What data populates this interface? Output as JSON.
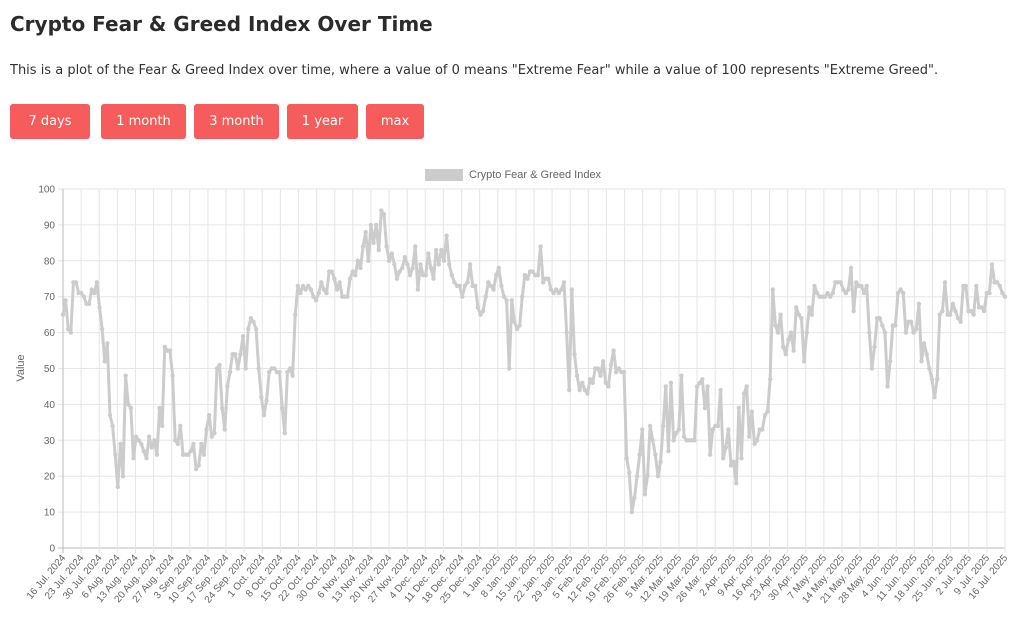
{
  "page": {
    "title": "Crypto Fear & Greed Index Over Time",
    "description": "This is a plot of the Fear & Greed Index over time, where a value of 0 means \"Extreme Fear\" while a value of 100 represents \"Extreme Greed\"."
  },
  "range_buttons": [
    "7 days",
    "1 month",
    "3 month",
    "1 year",
    "max"
  ],
  "colors": {
    "button": "#f75c5c",
    "series": "#cccccc",
    "grid": "#e6e6e6"
  },
  "chart_data": {
    "type": "line",
    "legend": "Crypto Fear & Greed Index",
    "legend_position": "top-center",
    "ylabel": "Value",
    "ylim": [
      0,
      100
    ],
    "y_ticks": [
      0,
      10,
      20,
      30,
      40,
      50,
      60,
      70,
      80,
      90,
      100
    ],
    "grid": true,
    "x_tick_labels": [
      "16 Jul. 2024",
      "23 Jul. 2024",
      "30 Jul. 2024",
      "6 Aug. 2024",
      "13 Aug. 2024",
      "20 Aug. 2024",
      "27 Aug. 2024",
      "3 Sep. 2024",
      "10 Sep. 2024",
      "17 Sep. 2024",
      "24 Sep. 2024",
      "1 Oct. 2024",
      "8 Oct. 2024",
      "15 Oct. 2024",
      "22 Oct. 2024",
      "30 Oct. 2024",
      "6 Nov. 2024",
      "13 Nov. 2024",
      "20 Nov. 2024",
      "27 Nov. 2024",
      "4 Dec. 2024",
      "11 Dec. 2024",
      "18 Dec. 2024",
      "25 Dec. 2024",
      "1 Jan. 2025",
      "8 Jan. 2025",
      "15 Jan. 2025",
      "22 Jan. 2025",
      "29 Jan. 2025",
      "5 Feb. 2025",
      "12 Feb. 2025",
      "19 Feb. 2025",
      "26 Feb. 2025",
      "5 Mar. 2025",
      "12 Mar. 2025",
      "19 Mar. 2025",
      "26 Mar. 2025",
      "2 Apr. 2025",
      "9 Apr. 2025",
      "16 Apr. 2025",
      "23 Apr. 2025",
      "30 Apr. 2025",
      "7 May. 2025",
      "14 May. 2025",
      "21 May. 2025",
      "28 May. 2025",
      "4 Jun. 2025",
      "11 Jun. 2025",
      "18 Jun. 2025",
      "25 Jun. 2025",
      "2 Jul. 2025",
      "9 Jul. 2025",
      "16 Jul. 2025"
    ],
    "series": [
      {
        "name": "Crypto Fear & Greed Index",
        "values": [
          65,
          69,
          61,
          60,
          74,
          74,
          71,
          71,
          70,
          68,
          68,
          72,
          71,
          74,
          67,
          61,
          52,
          57,
          37,
          34,
          26,
          17,
          29,
          20,
          48,
          40,
          39,
          25,
          31,
          30,
          29,
          27,
          25,
          31,
          28,
          30,
          26,
          39,
          34,
          56,
          55,
          55,
          48,
          30,
          29,
          34,
          26,
          26,
          26,
          27,
          29,
          22,
          23,
          29,
          26,
          33,
          37,
          31,
          32,
          50,
          51,
          39,
          33,
          45,
          49,
          54,
          54,
          50,
          54,
          59,
          50,
          61,
          64,
          63,
          61,
          50,
          42,
          37,
          41,
          49,
          50,
          50,
          49,
          49,
          39,
          32,
          49,
          50,
          48,
          65,
          73,
          71,
          73,
          72,
          73,
          72,
          70,
          69,
          71,
          74,
          72,
          71,
          77,
          77,
          75,
          72,
          74,
          70,
          70,
          70,
          75,
          77,
          76,
          80,
          78,
          84,
          88,
          80,
          90,
          85,
          90,
          83,
          94,
          93,
          84,
          80,
          82,
          79,
          75,
          77,
          78,
          81,
          79,
          76,
          78,
          84,
          72,
          79,
          76,
          76,
          82,
          78,
          75,
          83,
          79,
          83,
          80,
          87,
          79,
          76,
          74,
          73,
          73,
          70,
          73,
          74,
          79,
          73,
          73,
          67,
          65,
          66,
          70,
          74,
          73,
          72,
          76,
          78,
          73,
          70,
          69,
          50,
          69,
          63,
          61,
          62,
          70,
          76,
          75,
          77,
          77,
          76,
          76,
          84,
          74,
          75,
          75,
          72,
          71,
          72,
          71,
          72,
          74,
          60,
          44,
          72,
          54,
          48,
          44,
          46,
          44,
          43,
          47,
          46,
          50,
          50,
          48,
          52,
          46,
          45,
          51,
          55,
          49,
          50,
          49,
          49,
          25,
          21,
          10,
          14,
          20,
          26,
          33,
          15,
          20,
          34,
          30,
          26,
          20,
          24,
          34,
          45,
          27,
          46,
          30,
          32,
          33,
          48,
          31,
          30,
          30,
          30,
          30,
          45,
          46,
          47,
          39,
          45,
          26,
          33,
          34,
          34,
          44,
          25,
          28,
          33,
          23,
          24,
          18,
          39,
          25,
          43,
          45,
          31,
          38,
          29,
          30,
          33,
          33,
          37,
          38,
          47,
          72,
          62,
          60,
          65,
          56,
          54,
          58,
          60,
          55,
          67,
          65,
          64,
          52,
          60,
          67,
          65,
          73,
          71,
          70,
          70,
          70,
          71,
          70,
          71,
          74,
          74,
          74,
          72,
          71,
          72,
          78,
          66,
          74,
          73,
          73,
          71,
          73,
          60,
          50,
          56,
          64,
          64,
          62,
          60,
          45,
          52,
          62,
          62,
          71,
          72,
          71,
          60,
          63,
          63,
          60,
          61,
          68,
          52,
          57,
          54,
          50,
          47,
          42,
          47,
          65,
          66,
          74,
          65,
          65,
          68,
          66,
          64,
          63,
          73,
          73,
          66,
          66,
          65,
          73,
          67,
          67,
          66,
          71,
          71,
          79,
          74,
          74,
          73,
          71,
          70
        ]
      }
    ]
  }
}
